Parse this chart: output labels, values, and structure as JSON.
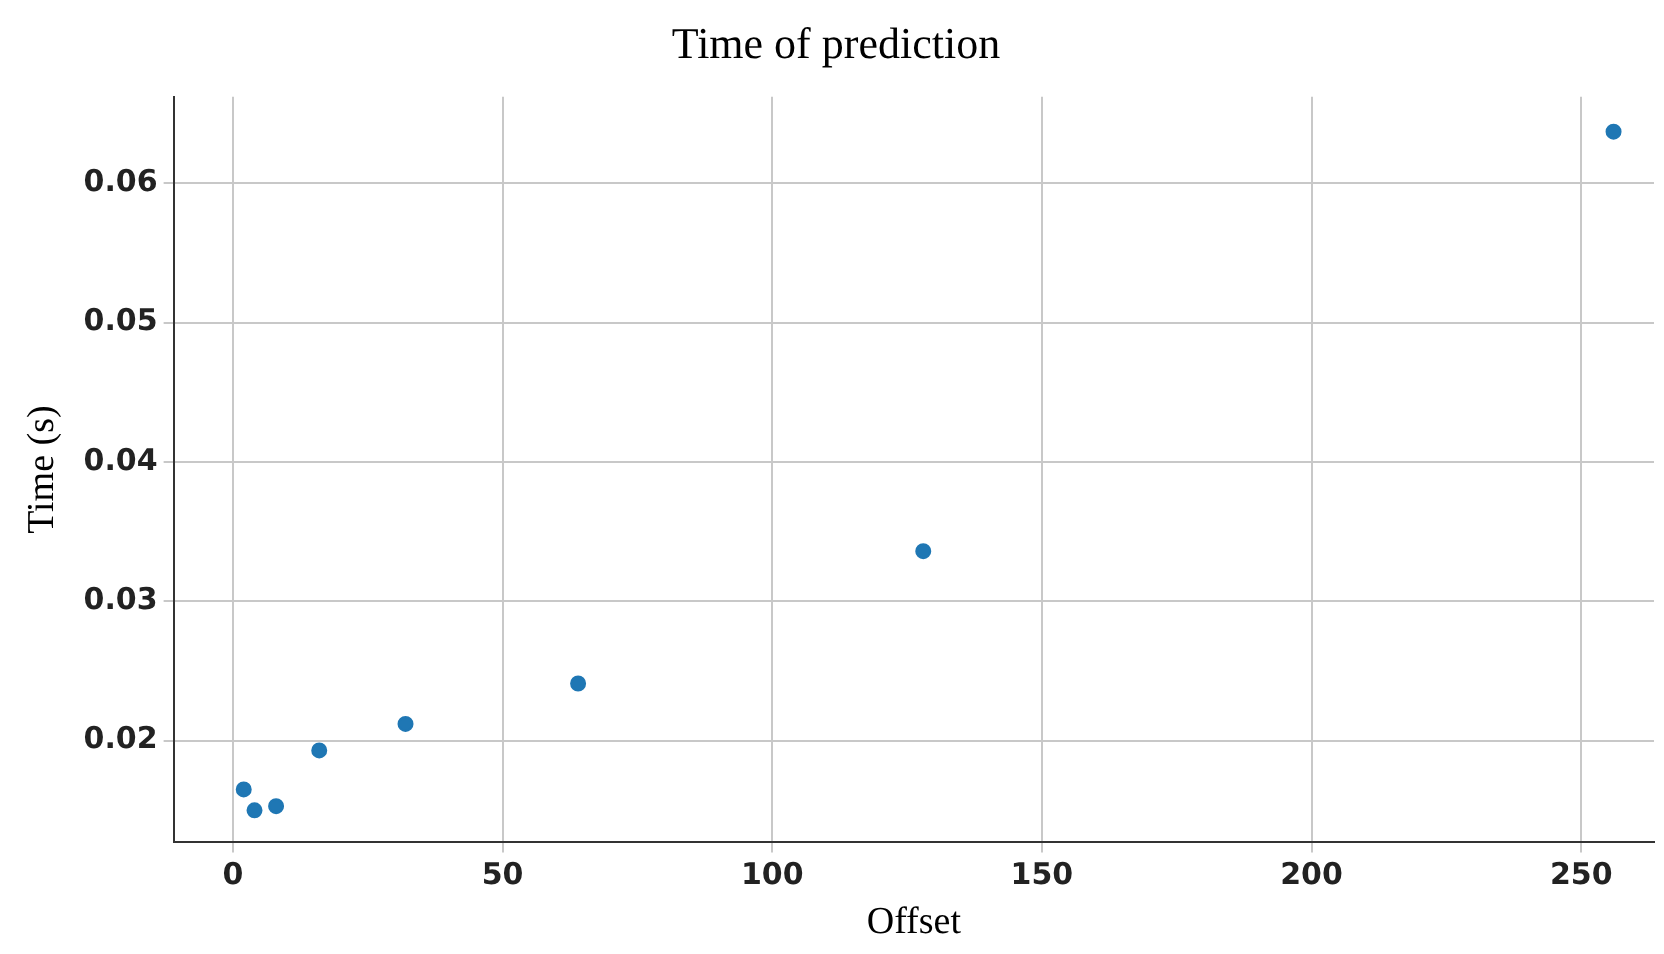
{
  "chart_data": {
    "type": "scatter",
    "title": "Time of prediction",
    "xlabel": "Offset",
    "ylabel": "Time (s)",
    "x": [
      2,
      4,
      8,
      16,
      32,
      64,
      128,
      256
    ],
    "series": [
      {
        "color": "#1f77b4",
        "values": [
          0.0165,
          0.015,
          0.0153,
          0.0193,
          0.0212,
          0.0241,
          0.0336,
          0.0637
        ]
      }
    ],
    "xlim": [
      -11,
      263.5
    ],
    "xticks": [
      0,
      50,
      100,
      150,
      200,
      250
    ],
    "ylim": [
      0.0127,
      0.0662
    ],
    "yticks": [
      0.02,
      0.03,
      0.04,
      0.05,
      0.06
    ],
    "grid": true,
    "legend": false,
    "marker": "circle"
  }
}
